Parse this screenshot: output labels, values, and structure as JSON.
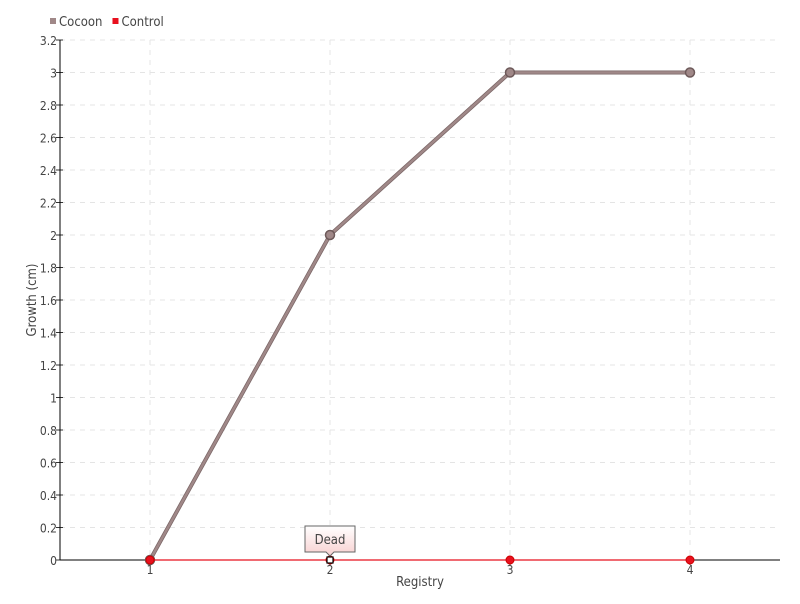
{
  "chart_data": {
    "type": "line",
    "xlabel": "Registry",
    "ylabel": "Growth (cm)",
    "categories": [
      "1",
      "2",
      "3",
      "4"
    ],
    "x": [
      1,
      2,
      3,
      4
    ],
    "xlim": [
      0.5,
      4.5
    ],
    "ylim": [
      0,
      3.2
    ],
    "yticks": [
      0,
      0.2,
      0.4,
      0.6,
      0.8,
      1,
      1.2,
      1.4,
      1.6,
      1.8,
      2,
      2.2,
      2.4,
      2.6,
      2.8,
      3,
      3.2
    ],
    "grid": true,
    "legend_placement": "top-left",
    "series": [
      {
        "name": "Cocoon",
        "values": [
          0,
          2,
          3,
          3
        ],
        "color": "#a08888"
      },
      {
        "name": "Control",
        "values": [
          0,
          0,
          0,
          0
        ],
        "color": "#e8101e"
      }
    ],
    "tooltip": {
      "text": "Dead",
      "series": "Control",
      "x": 2,
      "y": 0
    }
  }
}
